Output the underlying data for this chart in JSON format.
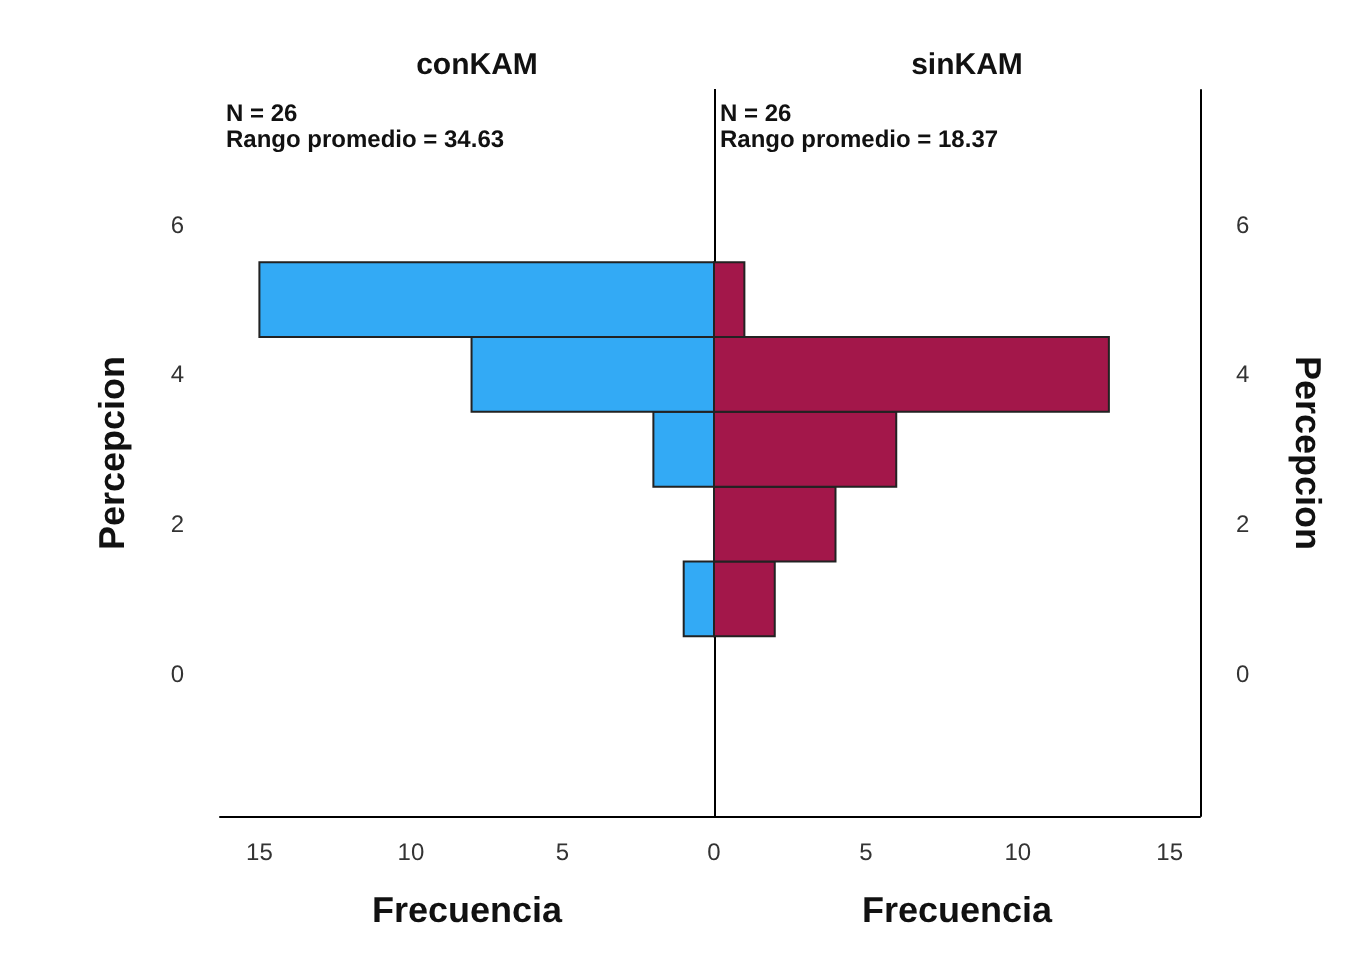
{
  "chart_data": [
    {
      "type": "histogram",
      "orientation": "horizontal",
      "title": "conKAM",
      "xlabel": "Frecuencia",
      "ylabel": "Percepcion",
      "annotations": [
        "N = 26",
        "Rango promedio = 34.63"
      ],
      "bins": [
        0.5,
        1.5,
        2.5,
        3.5,
        4.5,
        5.5
      ],
      "values": [
        1,
        0,
        2,
        8,
        15
      ],
      "color": "#33aaf5",
      "xlim": [
        16.3,
        0
      ],
      "xticks": [
        5,
        10,
        15
      ],
      "ylim": [
        -1.9,
        7.8
      ],
      "yticks": [
        0,
        2,
        4,
        6
      ],
      "grid": false
    },
    {
      "type": "histogram",
      "orientation": "horizontal",
      "title": "sinKAM",
      "xlabel": "Frecuencia",
      "ylabel": "Percepcion",
      "annotations": [
        "N = 26",
        "Rango promedio = 18.37"
      ],
      "bins": [
        0.5,
        1.5,
        2.5,
        3.5,
        4.5,
        5.5
      ],
      "values": [
        2,
        4,
        6,
        13,
        1
      ],
      "color": "#a3174a",
      "xlim": [
        0,
        16
      ],
      "xticks": [
        0,
        5,
        10,
        15
      ],
      "ylim": [
        -1.9,
        7.8
      ],
      "yticks": [
        0,
        2,
        4,
        6
      ],
      "grid": false
    }
  ]
}
